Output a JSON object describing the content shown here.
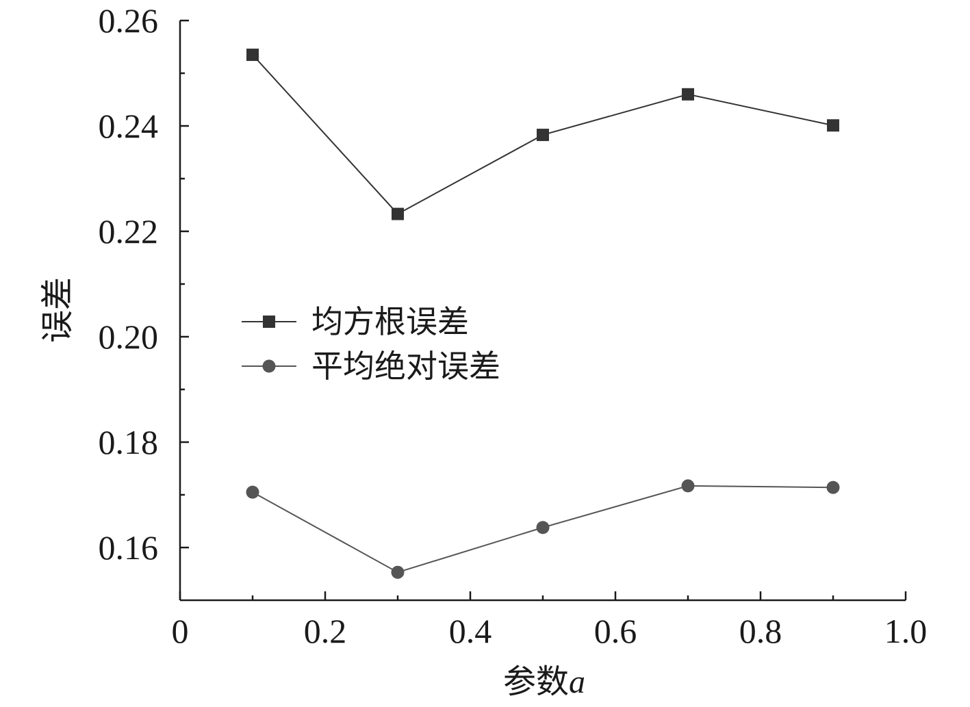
{
  "chart_data": {
    "type": "line",
    "title": "",
    "xlabel": "参数",
    "xlabel_var": "a",
    "ylabel": "误差",
    "xlim": [
      0,
      1.0
    ],
    "ylim": [
      0.15,
      0.26
    ],
    "x_ticks": [
      0,
      0.2,
      0.4,
      0.6,
      0.8,
      1.0
    ],
    "x_tick_labels": [
      "0",
      "0.2",
      "0.4",
      "0.6",
      "0.8",
      "1.0"
    ],
    "x_minor_ticks": [
      0.1,
      0.3,
      0.5,
      0.7,
      0.9
    ],
    "y_ticks": [
      0.16,
      0.18,
      0.2,
      0.22,
      0.24,
      0.26
    ],
    "y_tick_labels": [
      "0.16",
      "0.18",
      "0.20",
      "0.22",
      "0.24",
      "0.26"
    ],
    "y_minor_ticks": [
      0.17,
      0.19,
      0.21,
      0.23,
      0.25
    ],
    "grid": false,
    "legend_position": "center-left",
    "x": [
      0.1,
      0.3,
      0.5,
      0.7,
      0.9
    ],
    "series": [
      {
        "name": "均方根误差",
        "marker": "square",
        "color": "#333333",
        "values": [
          0.2535,
          0.2233,
          0.2383,
          0.246,
          0.2401
        ]
      },
      {
        "name": "平均绝对误差",
        "marker": "circle",
        "color": "#555555",
        "values": [
          0.1705,
          0.1553,
          0.1638,
          0.1717,
          0.1714
        ]
      }
    ]
  }
}
